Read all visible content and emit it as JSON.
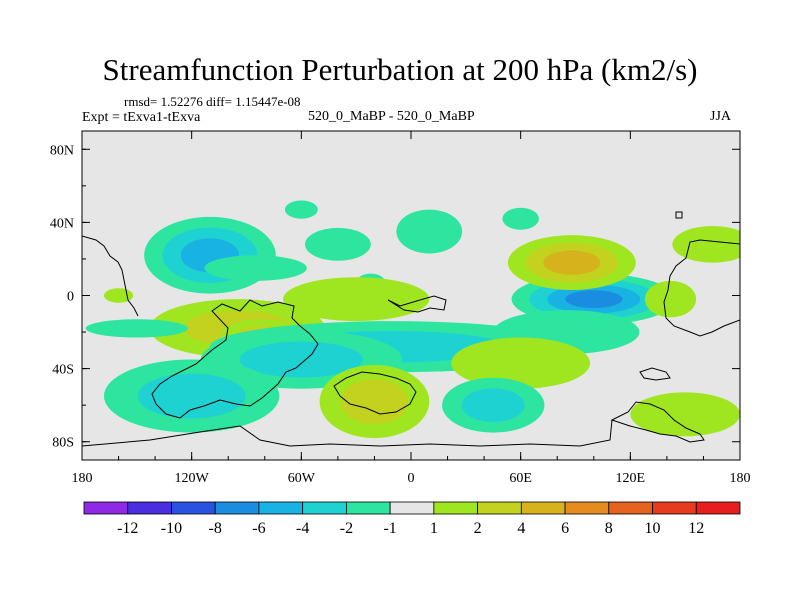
{
  "chart_data": {
    "type": "contour-map",
    "title": "Streamfunction Perturbation at 200 hPa (km2/s)",
    "stats": "rmsd= 1.52276 diff= 1.15447e-08",
    "left_label": "Expt = tExva1-tExva",
    "center_label": "520_0_MaBP - 520_0_MaBP",
    "right_label": "JJA",
    "x_ticks": [
      "180",
      "120W",
      "60W",
      "0",
      "60E",
      "120E",
      "180"
    ],
    "x_values": [
      -180,
      -120,
      -60,
      0,
      60,
      120,
      180
    ],
    "y_ticks": [
      "80N",
      "40N",
      "0",
      "40S",
      "80S"
    ],
    "y_values": [
      80,
      40,
      0,
      -40,
      -80
    ],
    "xlim": [
      -180,
      180
    ],
    "ylim": [
      -90,
      90
    ],
    "levels": [
      "-12",
      "-10",
      "-8",
      "-6",
      "-4",
      "-2",
      "-1",
      "1",
      "2",
      "4",
      "6",
      "8",
      "10",
      "12"
    ],
    "colors": [
      "#8e2ae6",
      "#4a2ee0",
      "#2a52e0",
      "#1a8de0",
      "#19b3e3",
      "#1fd2d2",
      "#2ee5a0",
      "#e6e6e6",
      "#a0e620",
      "#c2d21f",
      "#d6b21c",
      "#e68b1e",
      "#e6621f",
      "#e63b1e",
      "#e61e1e"
    ],
    "blobs": [
      {
        "lon": -110,
        "lat": 22,
        "rx": 36,
        "ry": 21,
        "levels": [
          -2,
          -4,
          -5.5
        ]
      },
      {
        "lon": -85,
        "lat": 15,
        "rx": 28,
        "ry": 7,
        "levels": [
          -2
        ]
      },
      {
        "lon": -40,
        "lat": 28,
        "rx": 18,
        "ry": 9,
        "levels": [
          -2
        ]
      },
      {
        "lon": -60,
        "lat": 47,
        "rx": 9,
        "ry": 5,
        "levels": [
          -1.5
        ]
      },
      {
        "lon": 10,
        "lat": 35,
        "rx": 18,
        "ry": 12,
        "levels": [
          -2
        ]
      },
      {
        "lon": 60,
        "lat": 42,
        "rx": 10,
        "ry": 6,
        "levels": [
          -1.5
        ]
      },
      {
        "lon": -22,
        "lat": 7,
        "rx": 8,
        "ry": 5,
        "levels": [
          -1.5
        ]
      },
      {
        "lon": 100,
        "lat": -2,
        "rx": 45,
        "ry": 14,
        "levels": [
          -2,
          -4,
          -5.5,
          -7
        ]
      },
      {
        "lon": -160,
        "lat": 0,
        "rx": 8,
        "ry": 4,
        "levels": [
          1.5
        ]
      },
      {
        "lon": -30,
        "lat": -2,
        "rx": 40,
        "ry": 12,
        "levels": [
          1.5
        ]
      },
      {
        "lon": -95,
        "lat": -18,
        "rx": 48,
        "ry": 16,
        "levels": [
          1.5,
          3
        ]
      },
      {
        "lon": -82,
        "lat": -22,
        "rx": 22,
        "ry": 9,
        "levels": [
          1.5,
          3
        ]
      },
      {
        "lon": -150,
        "lat": -18,
        "rx": 28,
        "ry": 5,
        "levels": [
          -1.5
        ]
      },
      {
        "lon": 88,
        "lat": 18,
        "rx": 35,
        "ry": 15,
        "levels": [
          1.5,
          3,
          4.5
        ]
      },
      {
        "lon": 165,
        "lat": 28,
        "rx": 22,
        "ry": 10,
        "levels": [
          1.5
        ]
      },
      {
        "lon": 142,
        "lat": -2,
        "rx": 14,
        "ry": 10,
        "levels": [
          1.5
        ]
      },
      {
        "lon": 85,
        "lat": -20,
        "rx": 40,
        "ry": 12,
        "levels": [
          -1.5
        ]
      },
      {
        "lon": -10,
        "lat": -28,
        "rx": 100,
        "ry": 14,
        "levels": [
          -1.5,
          -2.5
        ]
      },
      {
        "lon": -60,
        "lat": -35,
        "rx": 55,
        "ry": 16,
        "levels": [
          -1.5,
          -3
        ]
      },
      {
        "lon": 60,
        "lat": -37,
        "rx": 38,
        "ry": 14,
        "levels": [
          1.5
        ]
      },
      {
        "lon": -20,
        "lat": -58,
        "rx": 30,
        "ry": 20,
        "levels": [
          1.5,
          3
        ]
      },
      {
        "lon": -120,
        "lat": -55,
        "rx": 48,
        "ry": 20,
        "levels": [
          -1.5,
          -3
        ]
      },
      {
        "lon": 45,
        "lat": -60,
        "rx": 28,
        "ry": 15,
        "levels": [
          -1.5,
          -2.5
        ]
      },
      {
        "lon": 150,
        "lat": -65,
        "rx": 30,
        "ry": 12,
        "levels": [
          1.5
        ]
      }
    ]
  }
}
